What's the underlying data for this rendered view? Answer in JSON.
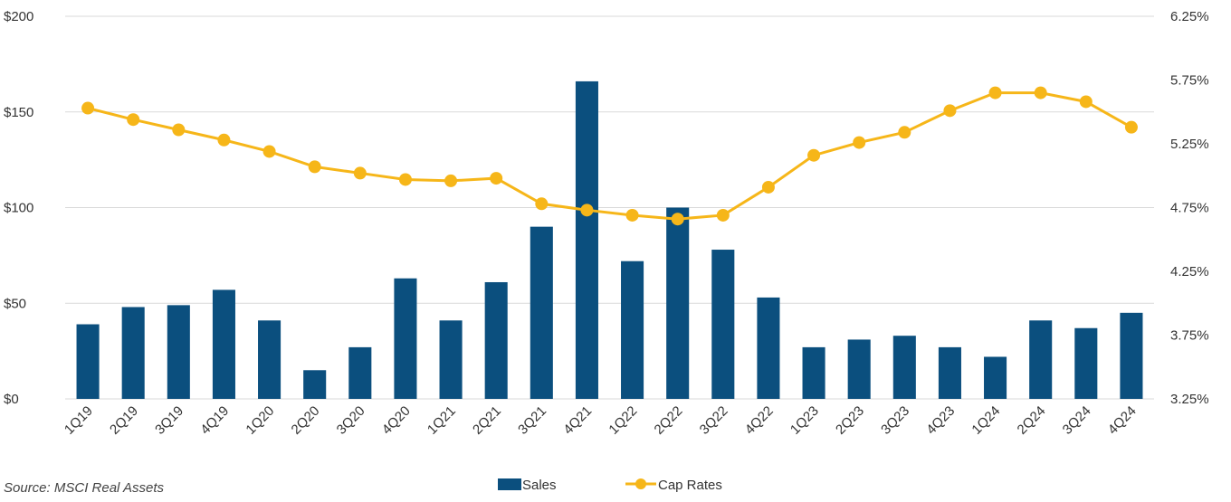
{
  "chart_data": {
    "type": "bar_line",
    "categories": [
      "1Q19",
      "2Q19",
      "3Q19",
      "4Q19",
      "1Q20",
      "2Q20",
      "3Q20",
      "4Q20",
      "1Q21",
      "2Q21",
      "3Q21",
      "4Q21",
      "1Q22",
      "2Q22",
      "3Q22",
      "4Q22",
      "1Q23",
      "2Q23",
      "3Q23",
      "4Q23",
      "1Q24",
      "2Q24",
      "3Q24",
      "4Q24"
    ],
    "series": [
      {
        "name": "Sales",
        "type": "bar",
        "color": "#0b4f7e",
        "values": [
          39,
          48,
          49,
          57,
          41,
          15,
          27,
          63,
          41,
          61,
          90,
          166,
          72,
          100,
          78,
          53,
          27,
          31,
          33,
          27,
          22,
          41,
          37,
          45
        ]
      },
      {
        "name": "Cap Rates",
        "type": "line",
        "axis": "y2",
        "color": "#f6b619",
        "values": [
          5.53,
          5.44,
          5.36,
          5.28,
          5.19,
          5.07,
          5.02,
          4.97,
          4.96,
          4.98,
          4.78,
          4.73,
          4.69,
          4.66,
          4.69,
          4.91,
          5.16,
          5.26,
          5.34,
          5.51,
          5.65,
          5.65,
          5.58,
          5.38
        ]
      }
    ],
    "ylim": [
      0,
      200
    ],
    "yticks": [
      {
        "value": 0,
        "label": "$0"
      },
      {
        "value": 50,
        "label": "$50"
      },
      {
        "value": 100,
        "label": "$100"
      },
      {
        "value": 150,
        "label": "$150"
      },
      {
        "value": 200,
        "label": "$200"
      }
    ],
    "y2lim": [
      3.25,
      6.25
    ],
    "y2ticks": [
      {
        "value": 3.25,
        "label": "3.25%"
      },
      {
        "value": 3.75,
        "label": "3.75%"
      },
      {
        "value": 4.25,
        "label": "4.25%"
      },
      {
        "value": 4.75,
        "label": "4.75%"
      },
      {
        "value": 5.25,
        "label": "5.25%"
      },
      {
        "value": 5.75,
        "label": "5.75%"
      },
      {
        "value": 6.25,
        "label": "6.25%"
      }
    ],
    "grid": true,
    "source": "Source: MSCI Real Assets"
  }
}
